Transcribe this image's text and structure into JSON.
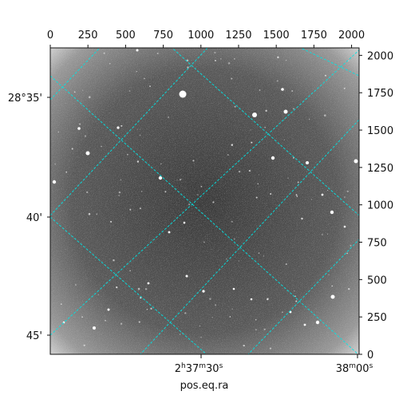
{
  "figure": {
    "top_ticks": [
      "0",
      "250",
      "500",
      "750",
      "1000",
      "1250",
      "1500",
      "1750",
      "2000"
    ],
    "right_ticks": [
      "0",
      "250",
      "500",
      "750",
      "1000",
      "1250",
      "1500",
      "1750",
      "2000"
    ],
    "dec_ticks": [
      "28°35'",
      "40'",
      "45'"
    ],
    "ra_ticks": [
      {
        "h": "2",
        "hs": "h",
        "m": "37",
        "ms": "m",
        "s": "30",
        "ss": "s"
      },
      {
        "h": "",
        "hs": "",
        "m": "38",
        "ms": "m",
        "s": "00",
        "ss": "s"
      }
    ],
    "xlabel": "pos.eq.ra",
    "colors": {
      "grid": "#00e5e5",
      "background": "#555555"
    }
  }
}
